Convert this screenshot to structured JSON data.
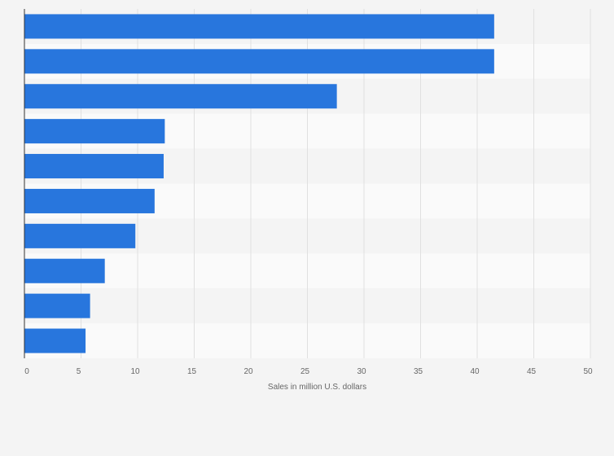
{
  "chart_data": {
    "type": "bar",
    "orientation": "horizontal",
    "categories": [
      "",
      "",
      "",
      "",
      "",
      "",
      "",
      "",
      "",
      ""
    ],
    "values": [
      41.5,
      41.5,
      27.6,
      12.4,
      12.3,
      11.5,
      9.8,
      7.1,
      5.8,
      5.4
    ],
    "xlabel": "Sales in million U.S. dollars",
    "ylabel": "",
    "xlim": [
      0,
      50
    ],
    "xticks": [
      0,
      5,
      10,
      15,
      20,
      25,
      30,
      35,
      40,
      45,
      50
    ],
    "xtick_labels": [
      "0",
      "5",
      "10",
      "15",
      "20",
      "25",
      "30",
      "35",
      "40",
      "45",
      "50"
    ],
    "grid": true,
    "legend": "none"
  },
  "colors": {
    "bar": "#2876dd",
    "band_odd": "#f4f4f4",
    "band_even": "#fafafa",
    "grid": "#e0e0e0",
    "axis": "#333333",
    "background": "#f4f4f4"
  }
}
